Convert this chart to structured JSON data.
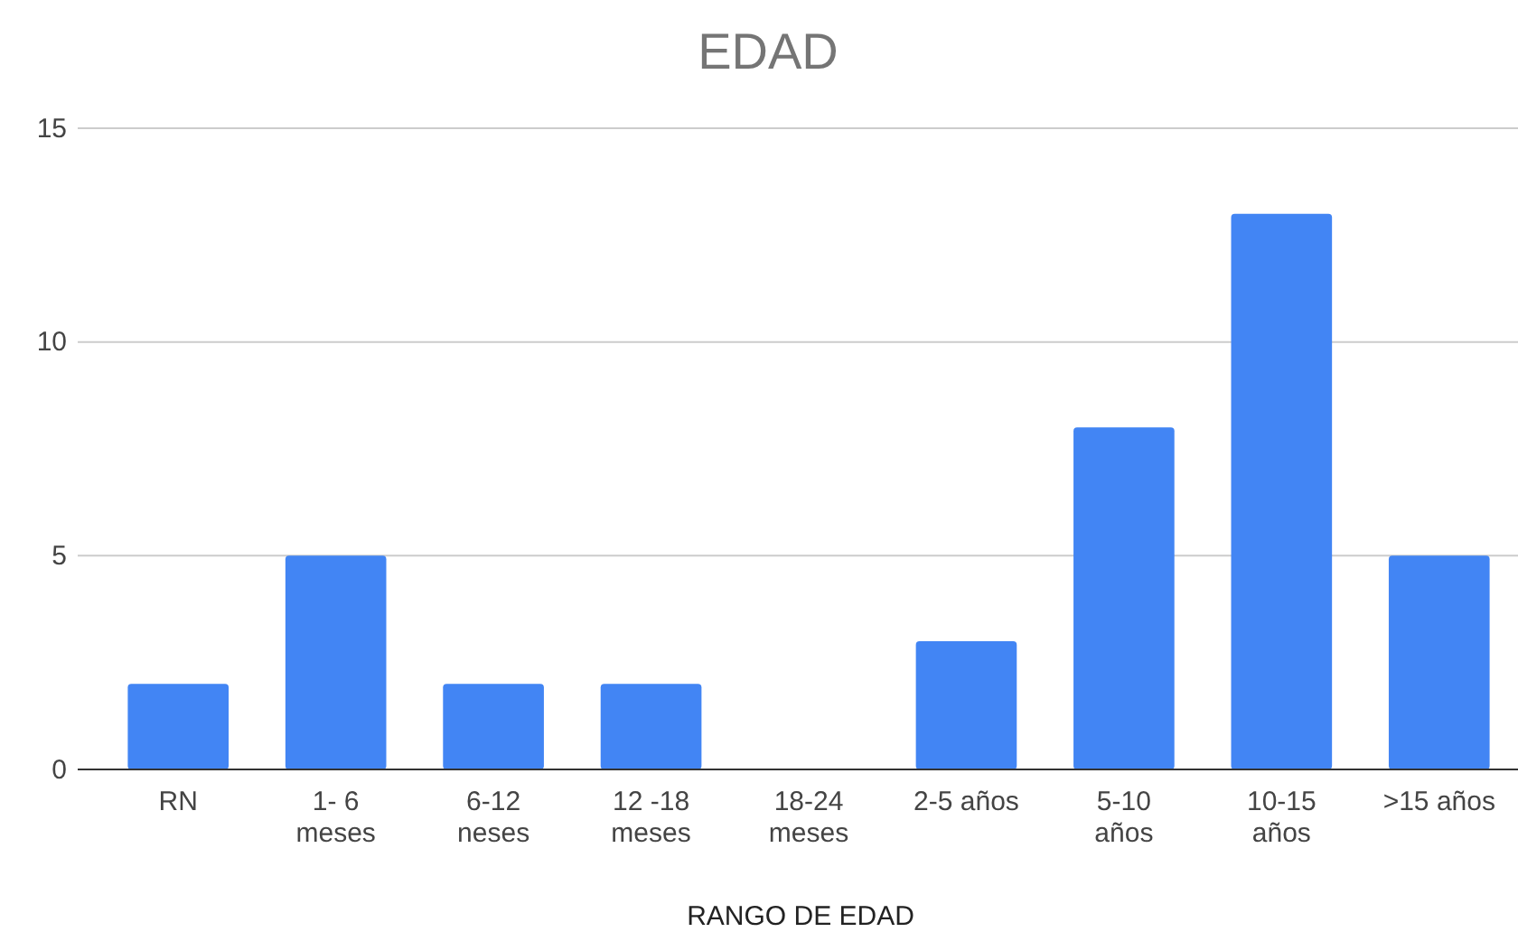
{
  "chart_data": {
    "type": "bar",
    "title": "EDAD",
    "xlabel": "RANGO DE EDAD",
    "categories": [
      "RN",
      "1- 6 meses",
      "6-12 neses",
      "12 -18 meses",
      "18-24 meses",
      "2-5 años",
      "5-10 años",
      "10-15 años",
      ">15 años"
    ],
    "values": [
      2,
      5,
      2,
      2,
      0,
      3,
      8,
      13,
      5
    ],
    "color": "#4285f4",
    "ylim": [
      0,
      15
    ],
    "yticks": [
      0,
      5,
      10,
      15
    ],
    "grid": "y"
  }
}
